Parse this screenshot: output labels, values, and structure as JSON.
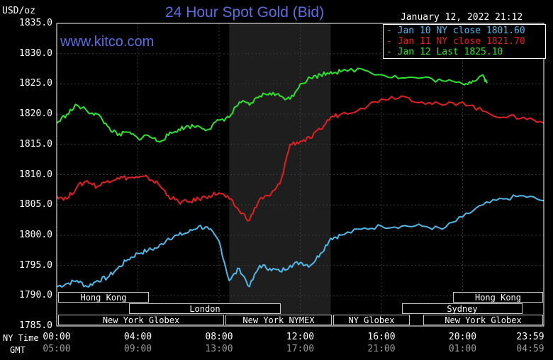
{
  "title": "24 Hour Spot Gold (Bid)",
  "website": "www.kitco.com",
  "unit_label": "USD/oz",
  "timestamp": "January 12, 2022 21:12",
  "legend": [
    {
      "label": "Jan 10 NY close 1801.60",
      "color": "#4fb8e8"
    },
    {
      "label": "Jan 11 NY close 1821.70",
      "color": "#e02020"
    },
    {
      "label": "Jan 12 Last 1825.10",
      "color": "#30e030"
    }
  ],
  "markets": {
    "hong_kong": "Hong Kong",
    "london": "London",
    "new_york_globex": "New York Globex",
    "new_york_nymex": "New York NYMEX",
    "ny_globex": "NY Globex",
    "sydney": "Sydney"
  },
  "time_axis": {
    "ny_label": "NY Time",
    "gmt_label": "GMT",
    "ny_ticks": [
      "00:00",
      "04:00",
      "08:00",
      "12:00",
      "16:00",
      "20:00",
      "23:59"
    ],
    "gmt_ticks": [
      "05:00",
      "09:00",
      "13:00",
      "17:00",
      "21:00",
      "01:00",
      "04:59"
    ]
  },
  "chart_data": {
    "type": "line",
    "title": "24 Hour Spot Gold (Bid)",
    "ylabel": "USD/oz",
    "xlabel": "NY Time",
    "ylim": [
      1785,
      1835
    ],
    "y_ticks": [
      "1835.0",
      "1830.0",
      "1825.0",
      "1820.0",
      "1815.0",
      "1810.0",
      "1805.0",
      "1800.0",
      "1795.0",
      "1790.0",
      "1785.0"
    ],
    "xlim_hours": [
      0,
      24
    ],
    "grid": true,
    "highlight_hours": [
      8.5,
      13.5
    ],
    "series": [
      {
        "name": "Jan 10 NY close 1801.60",
        "color": "#4fb8e8",
        "x": [
          0,
          0.5,
          1,
          1.5,
          2,
          2.5,
          3,
          3.5,
          4,
          4.5,
          5,
          5.5,
          6,
          6.5,
          7,
          7.5,
          8,
          8.5,
          9,
          9.5,
          10,
          10.5,
          11,
          11.5,
          12,
          12.5,
          13,
          13.5,
          14,
          15,
          16,
          17,
          18,
          19,
          20,
          21,
          22,
          23,
          24
        ],
        "y": [
          1791.5,
          1792,
          1792.5,
          1791.5,
          1792.5,
          1793,
          1794.5,
          1796,
          1797,
          1797.5,
          1798,
          1799.5,
          1800,
          1800.5,
          1801.5,
          1801,
          1799,
          1792.5,
          1794.5,
          1791.5,
          1795,
          1794.5,
          1794,
          1795,
          1795.5,
          1795,
          1797,
          1799.5,
          1800,
          1801,
          1801.5,
          1801.5,
          1801.5,
          1801,
          1803,
          1805,
          1806,
          1806.5,
          1805.7
        ]
      },
      {
        "name": "Jan 11 NY close 1821.70",
        "color": "#e02020",
        "x": [
          0,
          0.5,
          1,
          1.5,
          2,
          2.5,
          3,
          3.5,
          4,
          4.5,
          5,
          5.5,
          6,
          6.5,
          7,
          7.5,
          8,
          8.5,
          9,
          9.5,
          10,
          10.5,
          11,
          11.5,
          12,
          12.5,
          13,
          13.5,
          14,
          15,
          16,
          17,
          18,
          19,
          20,
          21,
          22,
          23,
          24
        ],
        "y": [
          1806.5,
          1806,
          1808,
          1809,
          1808,
          1809,
          1809.5,
          1809.5,
          1809.5,
          1809.5,
          1808.5,
          1806.5,
          1805.5,
          1805.5,
          1806,
          1806.5,
          1807,
          1806,
          1804,
          1802.5,
          1806,
          1806.5,
          1808.5,
          1815,
          1815.5,
          1816,
          1817.5,
          1819.5,
          1820,
          1821,
          1822.5,
          1823,
          1822,
          1821.5,
          1822,
          1820.5,
          1819.5,
          1819.5,
          1818.5
        ]
      },
      {
        "name": "Jan 12 Last 1825.10",
        "color": "#30e030",
        "x": [
          0,
          0.5,
          1,
          1.5,
          2,
          2.5,
          3,
          3.5,
          4,
          4.5,
          5,
          5.5,
          6,
          6.5,
          7,
          7.5,
          8,
          8.5,
          9,
          9.5,
          10,
          10.5,
          11,
          11.5,
          12,
          12.5,
          13,
          13.5,
          14,
          15,
          16,
          17,
          18,
          19,
          20,
          20.5,
          21,
          21.2
        ],
        "y": [
          1818.5,
          1820,
          1821.5,
          1820.5,
          1820,
          1818,
          1816.5,
          1817,
          1816,
          1816.5,
          1815.5,
          1816.5,
          1817.5,
          1818,
          1818,
          1817.5,
          1819,
          1819.5,
          1822,
          1821.5,
          1823,
          1823.5,
          1823,
          1822.5,
          1825,
          1826,
          1826.5,
          1827,
          1827,
          1827.5,
          1826.5,
          1826,
          1826,
          1825.5,
          1825,
          1825.5,
          1826.5,
          1825.1
        ]
      }
    ]
  }
}
